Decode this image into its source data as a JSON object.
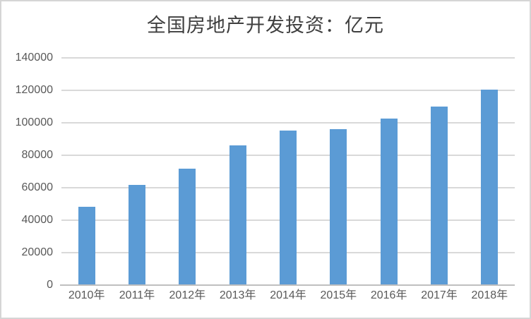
{
  "chart_data": {
    "type": "bar",
    "title": "全国房地产开发投资：亿元",
    "categories": [
      "2010年",
      "2011年",
      "2012年",
      "2013年",
      "2014年",
      "2015年",
      "2016年",
      "2017年",
      "2018年"
    ],
    "values": [
      48267,
      61740,
      71804,
      86013,
      95036,
      95979,
      102581,
      109799,
      120264
    ],
    "xlabel": "",
    "ylabel": "",
    "ylim": [
      0,
      140000
    ],
    "yticks": [
      0,
      20000,
      40000,
      60000,
      80000,
      100000,
      120000,
      140000
    ],
    "grid": true,
    "legend": false,
    "colors": {
      "bar": "#5B9BD5",
      "gridline": "#D9D9D9",
      "axis_line": "#BFBFBF",
      "tick_label": "#595959",
      "title": "#3F3F3F",
      "frame_border": "#D5D5D5",
      "background": "#FFFFFF"
    }
  }
}
